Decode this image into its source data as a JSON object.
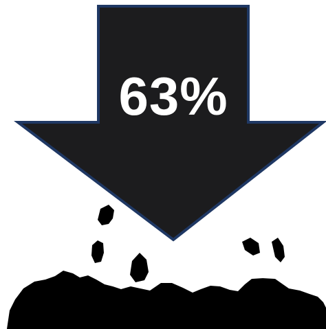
{
  "arrow": {
    "label": "63%",
    "fill_color": "#1c1c1e",
    "stroke_color": "#1f3864",
    "text_color": "#ffffff",
    "direction": "down"
  },
  "rubble": {
    "color": "#000000"
  }
}
